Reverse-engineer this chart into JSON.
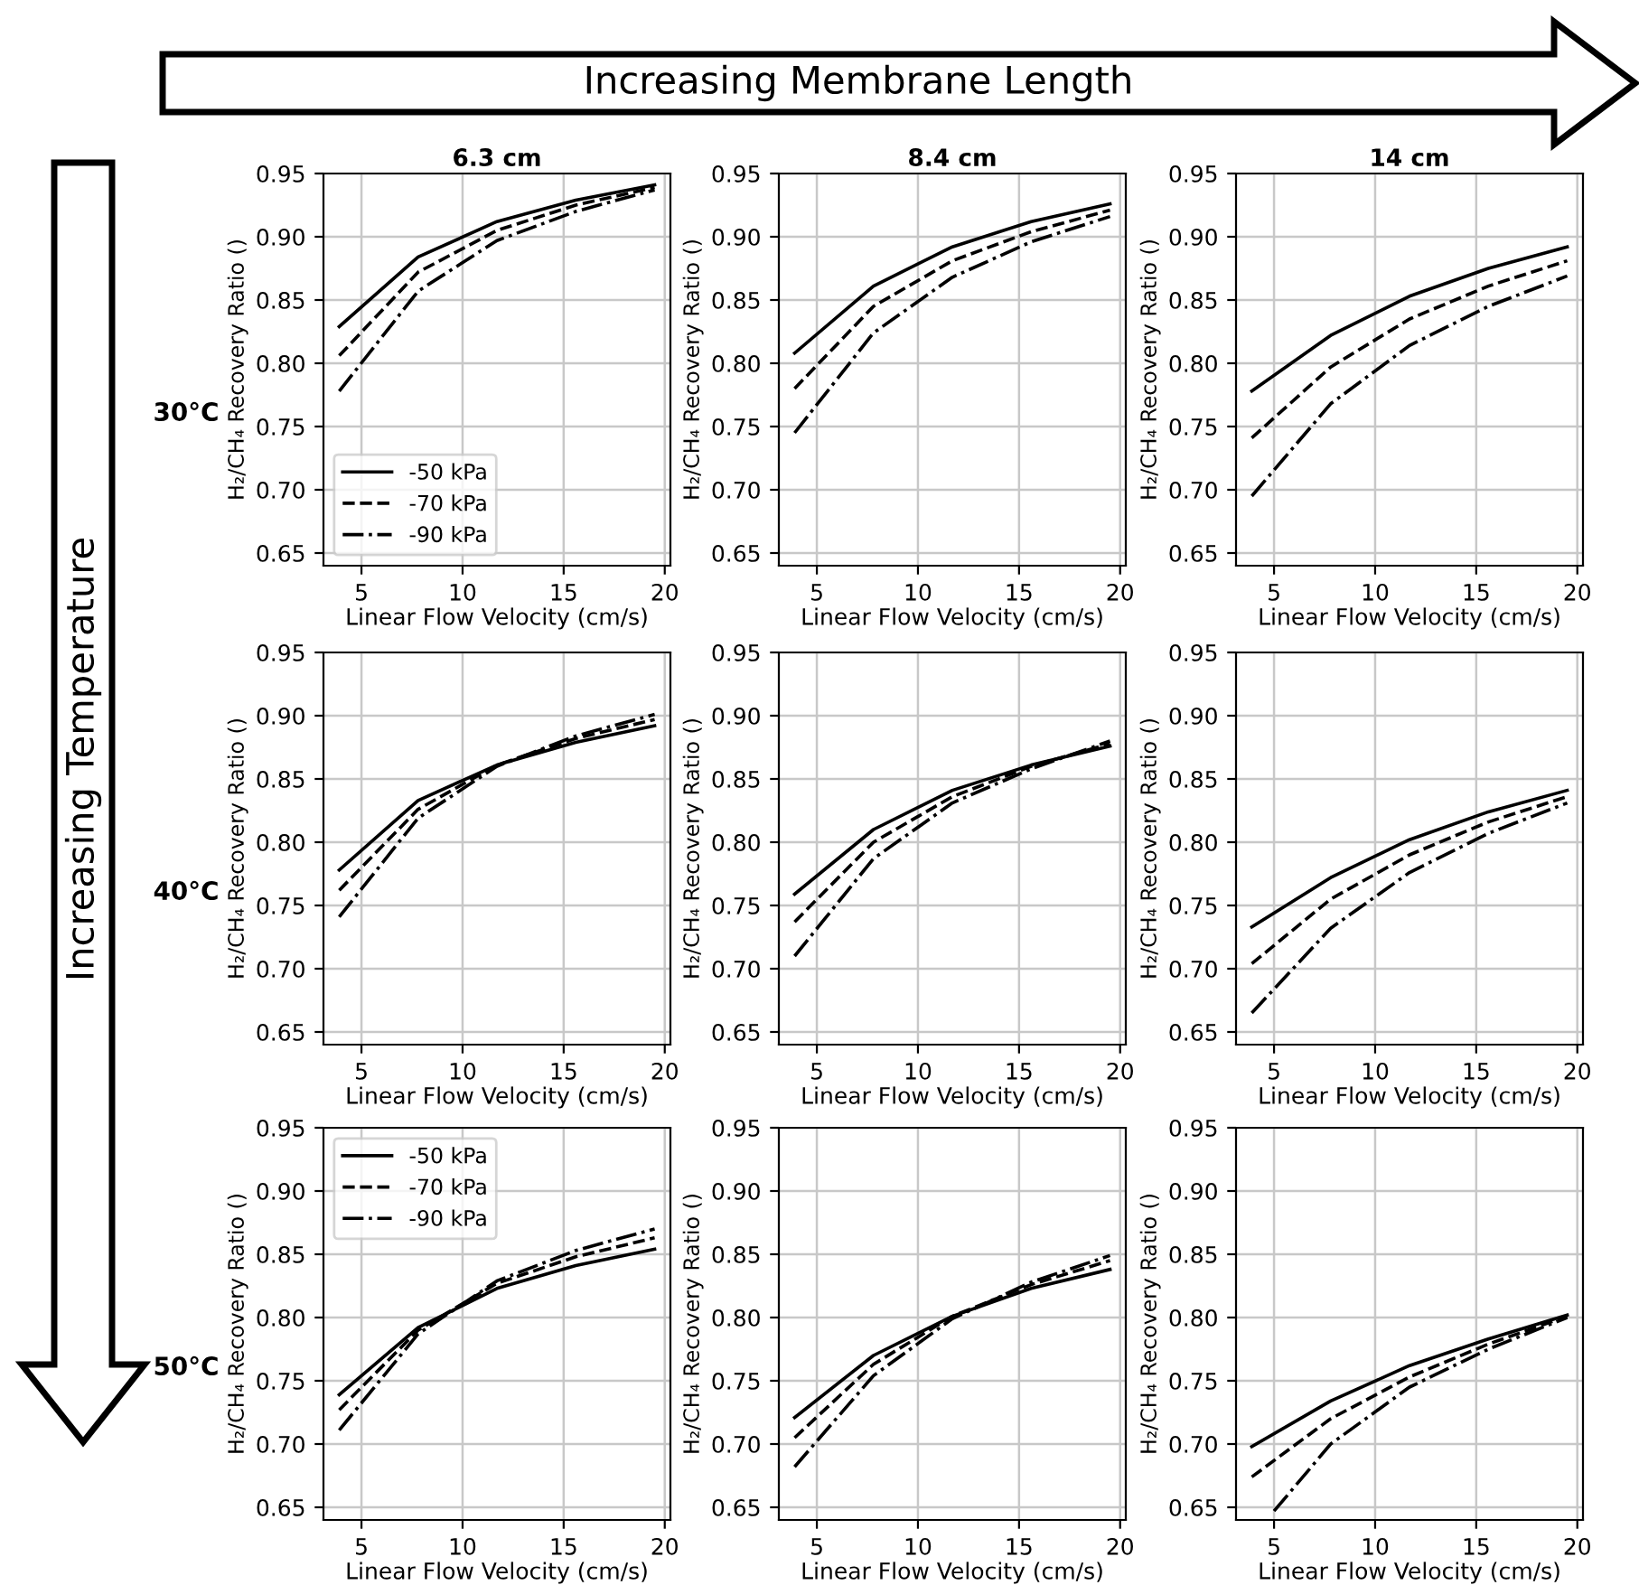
{
  "chart_data": [
    {
      "type": "line",
      "title": "6.3 cm",
      "xlabel": "Linear Flow Velocity (cm/s)",
      "ylabel": "H₂/CH₄ Recovery Ratio ()",
      "annotations": [
        "30°C",
        "Increasing Membrane Length",
        "Increasing Temperature"
      ],
      "x": [
        3.9,
        7.8,
        11.7,
        15.6,
        19.5
      ],
      "xlim": [
        3.12,
        20.28
      ],
      "ylim": [
        0.64,
        0.95
      ],
      "xticks": [
        5,
        10,
        15,
        20
      ],
      "yticks": [
        0.65,
        {
          "value": 0.7,
          "label": "0.70"
        },
        0.75,
        {
          "value": 0.8,
          "label": "0.80"
        },
        0.85,
        {
          "value": 0.9,
          "label": "0.90"
        },
        0.95
      ],
      "grid": true,
      "legend": "lower left",
      "series": [
        {
          "name": "-50 kPa",
          "color": "#000000",
          "line_style": "solid",
          "values": [
            0.829,
            0.884,
            0.912,
            0.929,
            0.941
          ]
        },
        {
          "name": "-70 kPa",
          "color": "#000000",
          "line_style": "dashed",
          "values": [
            0.806,
            0.872,
            0.905,
            0.925,
            0.939
          ]
        },
        {
          "name": "-90 kPa",
          "color": "#000000",
          "line_style": "dashdot",
          "values": [
            0.778,
            0.857,
            0.897,
            0.92,
            0.937
          ]
        }
      ]
    },
    {
      "type": "line",
      "title": "8.4 cm",
      "xlabel": "Linear Flow Velocity (cm/s)",
      "ylabel": "H₂/CH₄ Recovery Ratio ()",
      "x": [
        3.9,
        7.8,
        11.7,
        15.6,
        19.5
      ],
      "xlim": [
        3.12,
        20.28
      ],
      "ylim": [
        0.64,
        0.95
      ],
      "xticks": [
        5,
        10,
        15,
        20
      ],
      "yticks": [
        0.65,
        {
          "value": 0.7,
          "label": "0.70"
        },
        0.75,
        {
          "value": 0.8,
          "label": "0.80"
        },
        0.85,
        {
          "value": 0.9,
          "label": "0.90"
        },
        0.95
      ],
      "grid": true,
      "series": [
        {
          "color": "#000000",
          "line_style": "solid",
          "values": [
            0.808,
            0.861,
            0.892,
            0.912,
            0.926
          ]
        },
        {
          "color": "#000000",
          "line_style": "dashed",
          "values": [
            0.78,
            0.845,
            0.881,
            0.904,
            0.921
          ]
        },
        {
          "color": "#000000",
          "line_style": "dashdot",
          "values": [
            0.745,
            0.824,
            0.868,
            0.896,
            0.916
          ]
        }
      ]
    },
    {
      "type": "line",
      "title": "14 cm",
      "xlabel": "Linear Flow Velocity (cm/s)",
      "ylabel": "H₂/CH₄ Recovery Ratio ()",
      "x": [
        3.9,
        7.8,
        11.7,
        15.6,
        19.5
      ],
      "xlim": [
        3.12,
        20.28
      ],
      "ylim": [
        0.64,
        0.95
      ],
      "xticks": [
        5,
        10,
        15,
        20
      ],
      "yticks": [
        0.65,
        {
          "value": 0.7,
          "label": "0.70"
        },
        0.75,
        {
          "value": 0.8,
          "label": "0.80"
        },
        0.85,
        {
          "value": 0.9,
          "label": "0.90"
        },
        0.95
      ],
      "grid": true,
      "series": [
        {
          "color": "#000000",
          "line_style": "solid",
          "values": [
            0.778,
            0.822,
            0.853,
            0.875,
            0.892
          ]
        },
        {
          "color": "#000000",
          "line_style": "dashed",
          "values": [
            0.741,
            0.797,
            0.835,
            0.861,
            0.881
          ]
        },
        {
          "color": "#000000",
          "line_style": "dashdot",
          "values": [
            0.695,
            0.768,
            0.814,
            0.845,
            0.869
          ]
        }
      ]
    },
    {
      "type": "line",
      "xlabel": "Linear Flow Velocity (cm/s)",
      "ylabel": "H₂/CH₄ Recovery Ratio ()",
      "annotations": [
        "40°C"
      ],
      "x": [
        3.9,
        7.8,
        11.7,
        15.6,
        19.5
      ],
      "xlim": [
        3.12,
        20.28
      ],
      "ylim": [
        0.64,
        0.95
      ],
      "xticks": [
        5,
        10,
        15,
        20
      ],
      "yticks": [
        0.65,
        {
          "value": 0.7,
          "label": "0.70"
        },
        0.75,
        {
          "value": 0.8,
          "label": "0.80"
        },
        0.85,
        {
          "value": 0.9,
          "label": "0.90"
        },
        0.95
      ],
      "grid": true,
      "series": [
        {
          "color": "#000000",
          "line_style": "solid",
          "values": [
            0.778,
            0.833,
            0.861,
            0.879,
            0.892
          ]
        },
        {
          "color": "#000000",
          "line_style": "dashed",
          "values": [
            0.762,
            0.826,
            0.861,
            0.882,
            0.897
          ]
        },
        {
          "color": "#000000",
          "line_style": "dashdot",
          "values": [
            0.741,
            0.819,
            0.86,
            0.884,
            0.901
          ]
        }
      ]
    },
    {
      "type": "line",
      "xlabel": "Linear Flow Velocity (cm/s)",
      "ylabel": "H₂/CH₄ Recovery Ratio ()",
      "x": [
        3.9,
        7.8,
        11.7,
        15.6,
        19.5
      ],
      "xlim": [
        3.12,
        20.28
      ],
      "ylim": [
        0.64,
        0.95
      ],
      "xticks": [
        5,
        10,
        15,
        20
      ],
      "yticks": [
        0.65,
        {
          "value": 0.7,
          "label": "0.70"
        },
        0.75,
        {
          "value": 0.8,
          "label": "0.80"
        },
        0.85,
        {
          "value": 0.9,
          "label": "0.90"
        },
        0.95
      ],
      "grid": true,
      "series": [
        {
          "color": "#000000",
          "line_style": "solid",
          "values": [
            0.759,
            0.81,
            0.841,
            0.861,
            0.876
          ]
        },
        {
          "color": "#000000",
          "line_style": "dashed",
          "values": [
            0.737,
            0.8,
            0.836,
            0.86,
            0.878
          ]
        },
        {
          "color": "#000000",
          "line_style": "dashdot",
          "values": [
            0.71,
            0.787,
            0.831,
            0.858,
            0.88
          ]
        }
      ]
    },
    {
      "type": "line",
      "xlabel": "Linear Flow Velocity (cm/s)",
      "ylabel": "H₂/CH₄ Recovery Ratio ()",
      "x": [
        3.9,
        7.8,
        11.7,
        15.6,
        19.5
      ],
      "xlim": [
        3.12,
        20.28
      ],
      "ylim": [
        0.64,
        0.95
      ],
      "xticks": [
        5,
        10,
        15,
        20
      ],
      "yticks": [
        0.65,
        {
          "value": 0.7,
          "label": "0.70"
        },
        0.75,
        {
          "value": 0.8,
          "label": "0.80"
        },
        0.85,
        {
          "value": 0.9,
          "label": "0.90"
        },
        0.95
      ],
      "grid": true,
      "series": [
        {
          "color": "#000000",
          "line_style": "solid",
          "values": [
            0.733,
            0.772,
            0.802,
            0.824,
            0.841
          ]
        },
        {
          "color": "#000000",
          "line_style": "dashed",
          "values": [
            0.704,
            0.755,
            0.79,
            0.816,
            0.836
          ]
        },
        {
          "color": "#000000",
          "line_style": "dashdot",
          "values": [
            0.665,
            0.732,
            0.776,
            0.807,
            0.831
          ]
        }
      ]
    },
    {
      "type": "line",
      "xlabel": "Linear Flow Velocity (cm/s)",
      "ylabel": "H₂/CH₄ Recovery Ratio ()",
      "annotations": [
        "50°C"
      ],
      "x": [
        3.9,
        7.8,
        11.7,
        15.6,
        19.5
      ],
      "xlim": [
        3.12,
        20.28
      ],
      "ylim": [
        0.64,
        0.95
      ],
      "xticks": [
        5,
        10,
        15,
        20
      ],
      "yticks": [
        0.65,
        {
          "value": 0.7,
          "label": "0.70"
        },
        0.75,
        {
          "value": 0.8,
          "label": "0.80"
        },
        0.85,
        {
          "value": 0.9,
          "label": "0.90"
        },
        0.95
      ],
      "grid": true,
      "legend": "upper left",
      "series": [
        {
          "name": "-50 kPa",
          "color": "#000000",
          "line_style": "solid",
          "values": [
            0.739,
            0.792,
            0.823,
            0.841,
            0.854
          ]
        },
        {
          "name": "-70 kPa",
          "color": "#000000",
          "line_style": "dashed",
          "values": [
            0.727,
            0.79,
            0.827,
            0.848,
            0.863
          ]
        },
        {
          "name": "-90 kPa",
          "color": "#000000",
          "line_style": "dashdot",
          "values": [
            0.711,
            0.787,
            0.829,
            0.853,
            0.87
          ]
        }
      ]
    },
    {
      "type": "line",
      "xlabel": "Linear Flow Velocity (cm/s)",
      "ylabel": "H₂/CH₄ Recovery Ratio ()",
      "x": [
        3.9,
        7.8,
        11.7,
        15.6,
        19.5
      ],
      "xlim": [
        3.12,
        20.28
      ],
      "ylim": [
        0.64,
        0.95
      ],
      "xticks": [
        5,
        10,
        15,
        20
      ],
      "yticks": [
        0.65,
        {
          "value": 0.7,
          "label": "0.70"
        },
        0.75,
        {
          "value": 0.8,
          "label": "0.80"
        },
        0.85,
        {
          "value": 0.9,
          "label": "0.90"
        },
        0.95
      ],
      "grid": true,
      "series": [
        {
          "color": "#000000",
          "line_style": "solid",
          "values": [
            0.721,
            0.77,
            0.801,
            0.823,
            0.838
          ]
        },
        {
          "color": "#000000",
          "line_style": "dashed",
          "values": [
            0.705,
            0.763,
            0.801,
            0.826,
            0.845
          ]
        },
        {
          "color": "#000000",
          "line_style": "dashdot",
          "values": [
            0.682,
            0.754,
            0.799,
            0.828,
            0.849
          ]
        }
      ]
    },
    {
      "type": "line",
      "xlabel": "Linear Flow Velocity (cm/s)",
      "ylabel": "H₂/CH₄ Recovery Ratio ()",
      "x": [
        3.9,
        7.8,
        11.7,
        15.6,
        19.5
      ],
      "xlim": [
        3.12,
        20.28
      ],
      "ylim": [
        0.64,
        0.95
      ],
      "xticks": [
        5,
        10,
        15,
        20
      ],
      "yticks": [
        0.65,
        {
          "value": 0.7,
          "label": "0.70"
        },
        0.75,
        {
          "value": 0.8,
          "label": "0.80"
        },
        0.85,
        {
          "value": 0.9,
          "label": "0.90"
        },
        0.95
      ],
      "grid": true,
      "series": [
        {
          "color": "#000000",
          "line_style": "solid",
          "values": [
            0.698,
            0.734,
            0.762,
            0.783,
            0.802
          ]
        },
        {
          "color": "#000000",
          "line_style": "dashed",
          "values": [
            0.674,
            0.72,
            0.753,
            0.779,
            0.801
          ]
        },
        {
          "color": "#000000",
          "line_style": "dashdot",
          "x": [
            5.0,
            7.8,
            11.7,
            15.6,
            19.5
          ],
          "values": [
            0.647,
            0.7,
            0.745,
            0.775,
            0.8
          ]
        }
      ]
    }
  ]
}
